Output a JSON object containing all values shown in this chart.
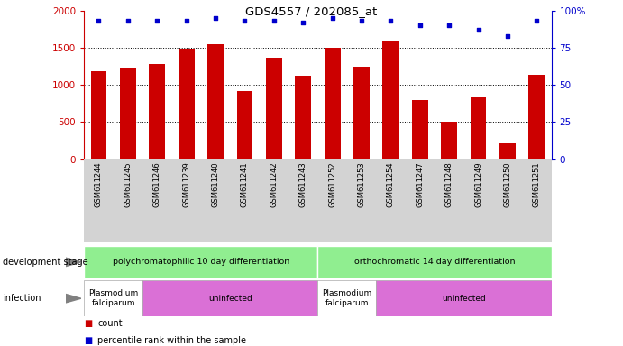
{
  "title": "GDS4557 / 202085_at",
  "samples": [
    "GSM611244",
    "GSM611245",
    "GSM611246",
    "GSM611239",
    "GSM611240",
    "GSM611241",
    "GSM611242",
    "GSM611243",
    "GSM611252",
    "GSM611253",
    "GSM611254",
    "GSM611247",
    "GSM611248",
    "GSM611249",
    "GSM611250",
    "GSM611251"
  ],
  "counts": [
    1180,
    1215,
    1280,
    1480,
    1540,
    920,
    1360,
    1120,
    1500,
    1240,
    1600,
    800,
    500,
    830,
    210,
    1130
  ],
  "percentiles": [
    93,
    93,
    93,
    93,
    95,
    93,
    93,
    92,
    95,
    93,
    93,
    90,
    90,
    87,
    83,
    93
  ],
  "bar_color": "#cc0000",
  "dot_color": "#0000cc",
  "left_axis_color": "#cc0000",
  "right_axis_color": "#0000cc",
  "ylim_left": [
    0,
    2000
  ],
  "ylim_right": [
    0,
    100
  ],
  "yticks_left": [
    0,
    500,
    1000,
    1500,
    2000
  ],
  "yticks_right": [
    0,
    25,
    50,
    75,
    100
  ],
  "background_color": "#ffffff",
  "label_area_bg": "#d3d3d3",
  "dev_groups": [
    {
      "label": "polychromatophilic 10 day differentiation",
      "start": 0,
      "end": 8,
      "color": "#90ee90"
    },
    {
      "label": "orthochromatic 14 day differentiation",
      "start": 8,
      "end": 16,
      "color": "#90ee90"
    }
  ],
  "inf_groups": [
    {
      "label": "Plasmodium\nfalciparum",
      "start": 0,
      "end": 2,
      "facecolor": "#ffffff"
    },
    {
      "label": "uninfected",
      "start": 2,
      "end": 8,
      "facecolor": "#da70d6"
    },
    {
      "label": "Plasmodium\nfalciparum",
      "start": 8,
      "end": 10,
      "facecolor": "#ffffff"
    },
    {
      "label": "uninfected",
      "start": 10,
      "end": 16,
      "facecolor": "#da70d6"
    }
  ]
}
